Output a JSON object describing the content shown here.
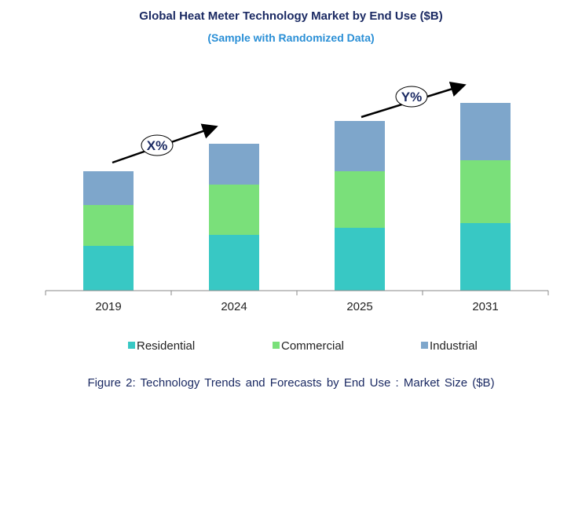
{
  "chart_data": {
    "type": "bar",
    "stacked": true,
    "title": "Global Heat Meter Technology Market by End Use ($B)",
    "subtitle": "(Sample with Randomized Data)",
    "caption": "Figure 2: Technology Trends and Forecasts by End Use : Market Size ($B)",
    "categories": [
      "2019",
      "2024",
      "2025",
      "2031"
    ],
    "series": [
      {
        "name": "Residential",
        "color": "#38c8c4",
        "values": [
          57,
          71,
          80,
          86
        ]
      },
      {
        "name": "Commercial",
        "color": "#7ae07a",
        "values": [
          52,
          64,
          72,
          80
        ]
      },
      {
        "name": "Industrial",
        "color": "#7ea6cb",
        "values": [
          43,
          52,
          64,
          73
        ]
      }
    ],
    "ylim": [
      0,
      240
    ],
    "grid": false,
    "legend": "bottom",
    "annotations": [
      {
        "label": "X%",
        "from": "2019",
        "to": "2024"
      },
      {
        "label": "Y%",
        "from": "2025",
        "to": "2031"
      }
    ]
  }
}
